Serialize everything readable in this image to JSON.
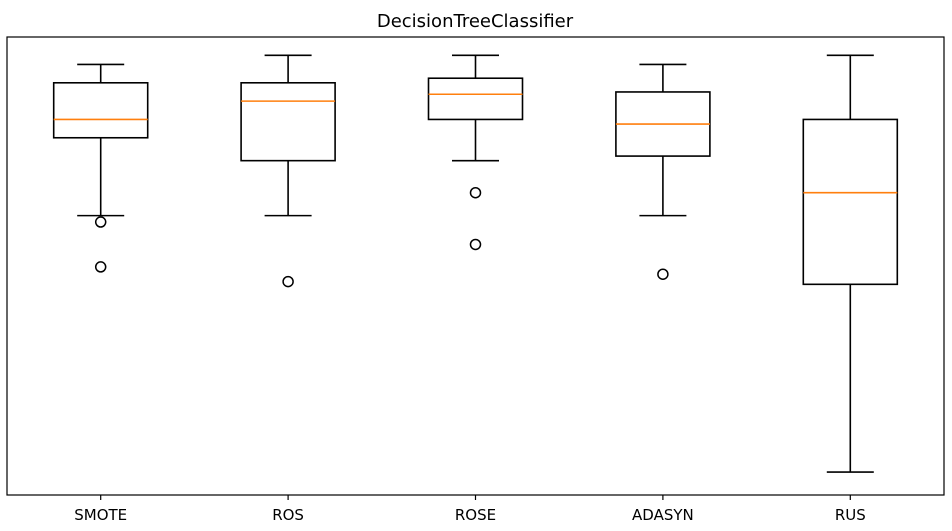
{
  "chart_data": {
    "type": "box",
    "title": "DecisionTreeClassifier",
    "xlabel": "",
    "ylabel": "",
    "y_ticks_shown": false,
    "ylim": [
      0,
      1
    ],
    "grid": false,
    "colors": {
      "box": "#000000",
      "median": "#ff7f0e",
      "flier": "#000000",
      "background": "#ffffff"
    },
    "categories": [
      "SMOTE",
      "ROS",
      "ROSE",
      "ADASYN",
      "RUS"
    ],
    "boxes": [
      {
        "label": "SMOTE",
        "whisker_low": 0.61,
        "q1": 0.78,
        "median": 0.82,
        "q3": 0.9,
        "whisker_high": 0.94,
        "fliers": [
          0.596,
          0.498
        ]
      },
      {
        "label": "ROS",
        "whisker_low": 0.61,
        "q1": 0.73,
        "median": 0.86,
        "q3": 0.9,
        "whisker_high": 0.96,
        "fliers": [
          0.466
        ]
      },
      {
        "label": "ROSE",
        "whisker_low": 0.73,
        "q1": 0.82,
        "median": 0.875,
        "q3": 0.91,
        "whisker_high": 0.96,
        "fliers": [
          0.66,
          0.547
        ]
      },
      {
        "label": "ADASYN",
        "whisker_low": 0.61,
        "q1": 0.74,
        "median": 0.81,
        "q3": 0.88,
        "whisker_high": 0.94,
        "fliers": [
          0.482
        ]
      },
      {
        "label": "RUS",
        "whisker_low": 0.05,
        "q1": 0.46,
        "median": 0.66,
        "q3": 0.82,
        "whisker_high": 0.96,
        "fliers": []
      }
    ]
  }
}
